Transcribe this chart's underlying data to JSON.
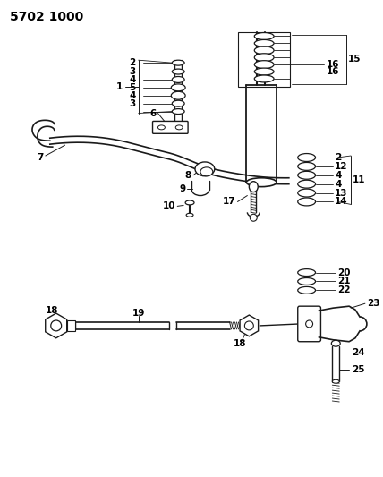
{
  "title": "5702 1000",
  "bg_color": "#ffffff",
  "line_color": "#1a1a1a",
  "text_color": "#000000",
  "title_fontsize": 10,
  "label_fontsize": 7.5,
  "figsize": [
    4.28,
    5.33
  ],
  "dpi": 100
}
